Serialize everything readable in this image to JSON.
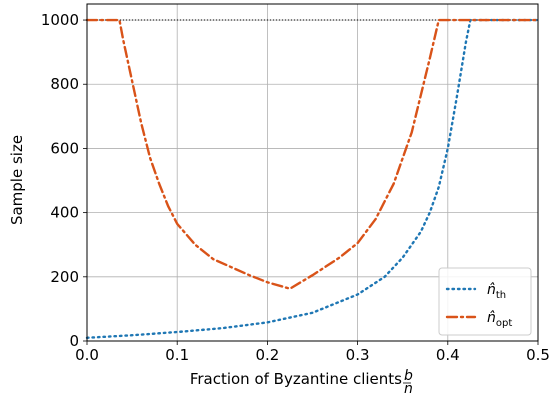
{
  "chart_data": {
    "type": "line",
    "xlabel": "Fraction of Byzantine clients",
    "xlabel_fraction": {
      "numerator": "b",
      "denominator": "n"
    },
    "ylabel": "Sample size",
    "xlim": [
      0,
      0.5
    ],
    "ylim": [
      0,
      1050
    ],
    "xticks": [
      "0.0",
      "0.1",
      "0.2",
      "0.3",
      "0.4",
      "0.5"
    ],
    "yticks": [
      "0",
      "200",
      "400",
      "600",
      "800",
      "1000"
    ],
    "grid": true,
    "legend_position": "lower-right",
    "reference_line": {
      "y": 1000,
      "style": "dotted",
      "color": "#000000"
    },
    "series": [
      {
        "name": "n̂_th",
        "legend_base": "n̂",
        "legend_sub": "th",
        "color": "#1f77b4",
        "style": "dotted",
        "x": [
          0.0,
          0.05,
          0.1,
          0.15,
          0.2,
          0.25,
          0.3,
          0.33,
          0.35,
          0.37,
          0.38,
          0.39,
          0.4,
          0.41,
          0.42,
          0.425,
          0.5
        ],
        "y": [
          10,
          18,
          28,
          40,
          58,
          88,
          145,
          200,
          260,
          340,
          400,
          480,
          600,
          760,
          930,
          1000,
          1000
        ]
      },
      {
        "name": "n̂_opt",
        "legend_base": "n̂",
        "legend_sub": "opt",
        "color": "#d95319",
        "style": "dashdot",
        "x": [
          0.0,
          0.036,
          0.04,
          0.05,
          0.06,
          0.07,
          0.08,
          0.09,
          0.1,
          0.12,
          0.14,
          0.16,
          0.18,
          0.2,
          0.225,
          0.25,
          0.28,
          0.3,
          0.32,
          0.34,
          0.36,
          0.38,
          0.39,
          0.5
        ],
        "y": [
          1000,
          1000,
          940,
          810,
          680,
          570,
          490,
          420,
          365,
          300,
          255,
          230,
          205,
          183,
          163,
          205,
          260,
          305,
          380,
          490,
          650,
          880,
          1000,
          1000
        ]
      }
    ]
  }
}
